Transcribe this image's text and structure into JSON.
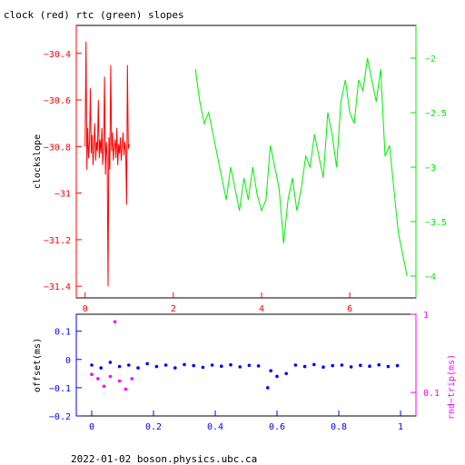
{
  "title": "clock (red) rtc (green) slopes",
  "footer": "2022-01-02  boson.physics.ubc.ca",
  "colors": {
    "clock": "#ff0000",
    "rtc": "#00ee00",
    "offset": "#0000ff",
    "rndtrip": "#ff00ff",
    "axis_black": "#000000"
  },
  "chart_data": [
    {
      "type": "line",
      "title": "clock (red) rtc (green) slopes",
      "ylabel": "clockslope",
      "xlim": [
        -0.2,
        7.5
      ],
      "ylim": [
        -31.45,
        -30.28
      ],
      "y2lim": [
        -4.2,
        -1.7
      ],
      "x_ticks": [
        0,
        2,
        4,
        6
      ],
      "x_tick_labels": [
        "0",
        "2",
        "4",
        "6"
      ],
      "y_ticks": [
        -30.4,
        -30.6,
        -30.8,
        -31,
        -31.2,
        -31.4
      ],
      "y_tick_labels": [
        "−30.4",
        "−30.6",
        "−30.8",
        "−31",
        "−31.2",
        "−31.4"
      ],
      "y2_ticks": [
        -2,
        -2.5,
        -3,
        -3.5,
        -4
      ],
      "y2_tick_labels": [
        "−2",
        "−2.5",
        "−3",
        "−3.5",
        "−4"
      ],
      "series": [
        {
          "name": "clock",
          "axis": "left",
          "x": [
            0.0,
            0.02,
            0.04,
            0.06,
            0.08,
            0.1,
            0.12,
            0.14,
            0.16,
            0.18,
            0.2,
            0.22,
            0.24,
            0.26,
            0.28,
            0.3,
            0.32,
            0.34,
            0.36,
            0.38,
            0.4,
            0.42,
            0.44,
            0.46,
            0.48,
            0.5,
            0.52,
            0.54,
            0.56,
            0.58,
            0.6,
            0.62,
            0.64,
            0.66,
            0.68,
            0.7,
            0.72,
            0.74,
            0.76,
            0.78,
            0.8,
            0.82,
            0.84,
            0.86,
            0.88,
            0.9,
            0.92,
            0.94,
            0.96,
            0.98,
            1.0
          ],
          "y": [
            -30.8,
            -30.35,
            -30.9,
            -30.72,
            -30.85,
            -30.78,
            -30.55,
            -30.83,
            -30.75,
            -30.88,
            -30.8,
            -30.7,
            -30.86,
            -30.78,
            -30.82,
            -30.6,
            -30.85,
            -30.77,
            -30.83,
            -30.72,
            -30.88,
            -30.8,
            -30.5,
            -30.92,
            -30.78,
            -30.84,
            -31.4,
            -30.76,
            -30.9,
            -30.45,
            -30.82,
            -30.74,
            -30.86,
            -30.8,
            -30.77,
            -30.85,
            -30.72,
            -30.88,
            -30.79,
            -30.83,
            -30.76,
            -30.86,
            -30.8,
            -30.74,
            -30.84,
            -30.78,
            -30.82,
            -31.05,
            -30.45,
            -30.81,
            -30.79
          ]
        },
        {
          "name": "rtc",
          "axis": "right",
          "x": [
            2.5,
            2.6,
            2.7,
            2.8,
            2.9,
            3.0,
            3.1,
            3.2,
            3.3,
            3.4,
            3.5,
            3.6,
            3.7,
            3.8,
            3.9,
            4.0,
            4.1,
            4.2,
            4.3,
            4.4,
            4.5,
            4.6,
            4.7,
            4.8,
            4.9,
            5.0,
            5.1,
            5.2,
            5.3,
            5.4,
            5.5,
            5.6,
            5.7,
            5.8,
            5.9,
            6.0,
            6.1,
            6.2,
            6.3,
            6.4,
            6.5,
            6.6,
            6.7,
            6.8,
            6.9,
            7.0,
            7.1,
            7.2,
            7.3
          ],
          "y": [
            -2.1,
            -2.4,
            -2.6,
            -2.5,
            -2.7,
            -2.9,
            -3.1,
            -3.3,
            -3.0,
            -3.2,
            -3.4,
            -3.1,
            -3.3,
            -3.0,
            -3.25,
            -3.4,
            -3.3,
            -2.8,
            -3.0,
            -3.2,
            -3.7,
            -3.3,
            -3.1,
            -3.4,
            -3.2,
            -2.9,
            -3.0,
            -2.7,
            -2.9,
            -3.1,
            -2.5,
            -2.7,
            -3.0,
            -2.4,
            -2.2,
            -2.5,
            -2.6,
            -2.2,
            -2.3,
            -2.0,
            -2.2,
            -2.4,
            -2.1,
            -2.9,
            -2.8,
            -3.2,
            -3.6,
            -3.8,
            -4.0
          ]
        }
      ]
    },
    {
      "type": "scatter",
      "ylabel": "offset(ms)",
      "y2label": "rnd−trip(ms)",
      "xlim": [
        -0.05,
        1.05
      ],
      "ylim": [
        -0.2,
        0.16
      ],
      "y2lim": [
        0.05,
        1.0
      ],
      "y2_scale": "log",
      "x_ticks": [
        0,
        0.2,
        0.4,
        0.6,
        0.8,
        1
      ],
      "x_tick_labels": [
        "0",
        "0.2",
        "0.4",
        "0.6",
        "0.8",
        "1"
      ],
      "y_ticks": [
        0.1,
        0,
        -0.1,
        -0.2
      ],
      "y_tick_labels": [
        "0.1",
        "0",
        "−0.1",
        "−0.2"
      ],
      "y2_ticks": [
        1,
        0.1
      ],
      "y2_tick_labels": [
        "1",
        "0.1"
      ],
      "series": [
        {
          "name": "offset",
          "axis": "left",
          "x": [
            0.0,
            0.03,
            0.06,
            0.09,
            0.12,
            0.15,
            0.18,
            0.21,
            0.24,
            0.27,
            0.3,
            0.33,
            0.36,
            0.39,
            0.42,
            0.45,
            0.48,
            0.51,
            0.54,
            0.57,
            0.58,
            0.6,
            0.63,
            0.66,
            0.69,
            0.72,
            0.75,
            0.78,
            0.81,
            0.84,
            0.87,
            0.9,
            0.93,
            0.96,
            0.99
          ],
          "y": [
            -0.02,
            -0.03,
            -0.01,
            -0.025,
            -0.02,
            -0.03,
            -0.015,
            -0.025,
            -0.02,
            -0.03,
            -0.018,
            -0.022,
            -0.028,
            -0.02,
            -0.024,
            -0.019,
            -0.026,
            -0.021,
            -0.023,
            -0.1,
            -0.04,
            -0.06,
            -0.05,
            -0.02,
            -0.025,
            -0.018,
            -0.027,
            -0.022,
            -0.02,
            -0.026,
            -0.021,
            -0.024,
            -0.019,
            -0.025,
            -0.022
          ]
        },
        {
          "name": "rnd-trip",
          "axis": "right",
          "x": [
            0.0,
            0.02,
            0.04,
            0.06,
            0.075,
            0.09,
            0.11,
            0.13
          ],
          "y": [
            0.17,
            0.15,
            0.12,
            0.16,
            0.8,
            0.14,
            0.11,
            0.15
          ]
        }
      ]
    }
  ]
}
